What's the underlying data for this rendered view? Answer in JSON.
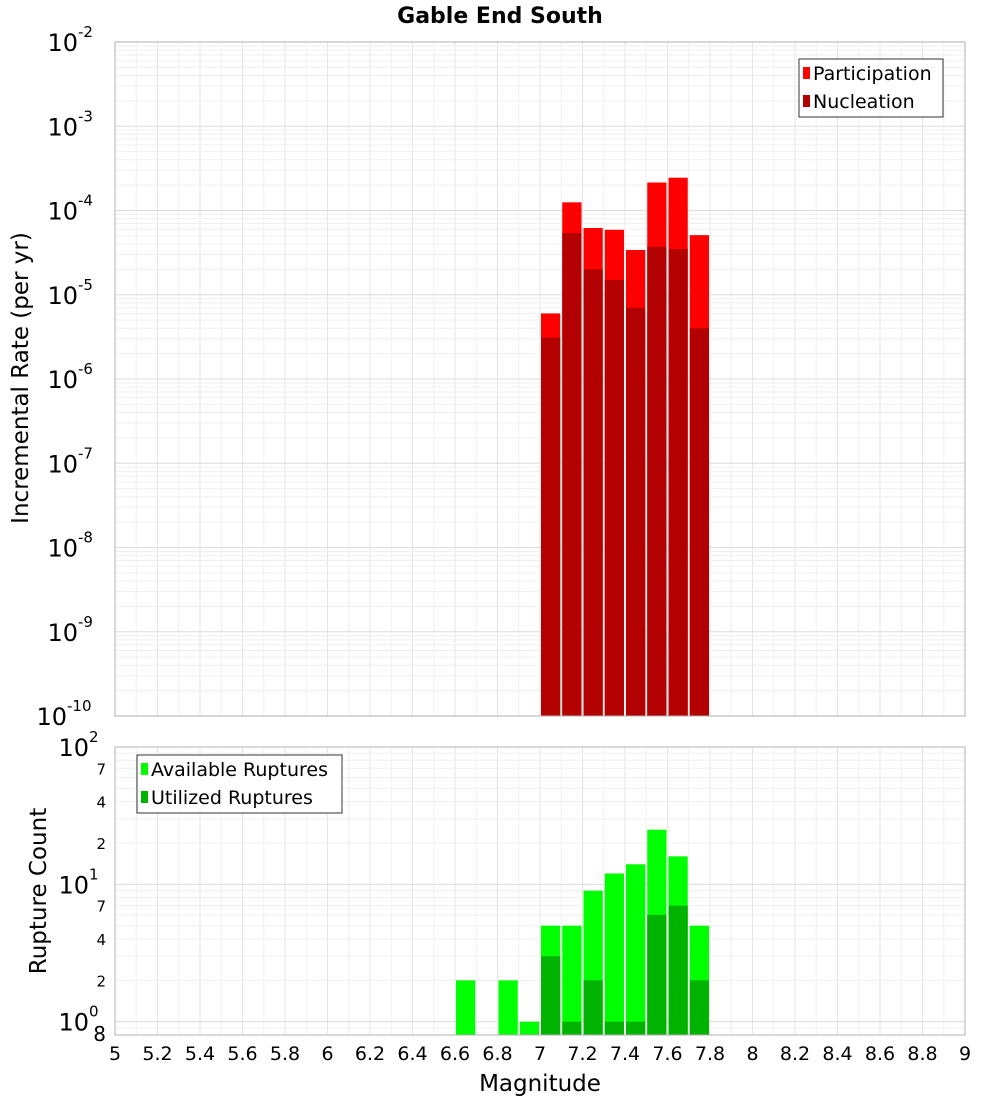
{
  "chart_data": [
    {
      "type": "bar",
      "title": "Gable End South",
      "ylabel": "Incremental Rate (per yr)",
      "yscale": "log",
      "ylim": [
        1e-10,
        0.01
      ],
      "xlim": [
        5,
        9
      ],
      "grid": true,
      "legend_position": "top-right",
      "y_tick_labels": [
        {
          "value": 0.01,
          "base": "10",
          "exp": "-2"
        },
        {
          "value": 0.001,
          "base": "10",
          "exp": "-3"
        },
        {
          "value": 0.0001,
          "base": "10",
          "exp": "-4"
        },
        {
          "value": 1e-05,
          "base": "10",
          "exp": "-5"
        },
        {
          "value": 1e-06,
          "base": "10",
          "exp": "-6"
        },
        {
          "value": 1e-07,
          "base": "10",
          "exp": "-7"
        },
        {
          "value": 1e-08,
          "base": "10",
          "exp": "-8"
        },
        {
          "value": 1e-09,
          "base": "10",
          "exp": "-9"
        },
        {
          "value": 1e-10,
          "base": "10",
          "exp": "-10"
        }
      ],
      "x": [
        7.0,
        7.1,
        7.2,
        7.3,
        7.4,
        7.5,
        7.6,
        7.7
      ],
      "series": [
        {
          "name": "Participation",
          "color": "#ff0000",
          "values": [
            6e-06,
            0.000125,
            6.2e-05,
            5.9e-05,
            3.4e-05,
            0.000215,
            0.000245,
            5.1e-05
          ]
        },
        {
          "name": "Nucleation",
          "color": "#b30000",
          "values": [
            3.1e-06,
            5.4e-05,
            2e-05,
            1.5e-05,
            7e-06,
            3.7e-05,
            3.5e-05,
            4e-06
          ]
        }
      ]
    },
    {
      "type": "bar",
      "ylabel": "Rupture Count",
      "xlabel": "Magnitude",
      "yscale": "log",
      "ylim": [
        0.8,
        100
      ],
      "xlim": [
        5,
        9
      ],
      "grid": true,
      "legend_position": "top-left",
      "x_tick_labels": [
        "5",
        "5.2",
        "5.4",
        "5.6",
        "5.8",
        "6",
        "6.2",
        "6.4",
        "6.6",
        "6.8",
        "7",
        "7.2",
        "7.4",
        "7.6",
        "7.8",
        "8",
        "8.2",
        "8.4",
        "8.6",
        "8.8",
        "9"
      ],
      "y_tick_labels": [
        {
          "value": 100,
          "base": "10",
          "exp": "2"
        },
        {
          "value": 70,
          "base": "7",
          "exp": ""
        },
        {
          "value": 40,
          "base": "4",
          "exp": ""
        },
        {
          "value": 20,
          "base": "2",
          "exp": ""
        },
        {
          "value": 10,
          "base": "10",
          "exp": "1"
        },
        {
          "value": 7,
          "base": "7",
          "exp": ""
        },
        {
          "value": 4,
          "base": "4",
          "exp": ""
        },
        {
          "value": 2,
          "base": "2",
          "exp": ""
        },
        {
          "value": 1,
          "base": "10",
          "exp": "0"
        },
        {
          "value": 0.8,
          "base": "8",
          "exp": ""
        }
      ],
      "x": [
        6.6,
        6.8,
        6.9,
        7.0,
        7.1,
        7.2,
        7.3,
        7.4,
        7.5,
        7.6,
        7.7
      ],
      "series": [
        {
          "name": "Available Ruptures",
          "color": "#00ff00",
          "values": [
            2,
            2,
            1,
            5,
            5,
            9,
            12,
            14,
            25,
            16,
            5
          ]
        },
        {
          "name": "Utilized Ruptures",
          "color": "#00b300",
          "values": [
            0,
            0,
            0,
            3,
            1,
            2,
            1,
            1,
            6,
            7,
            2
          ]
        }
      ]
    }
  ]
}
